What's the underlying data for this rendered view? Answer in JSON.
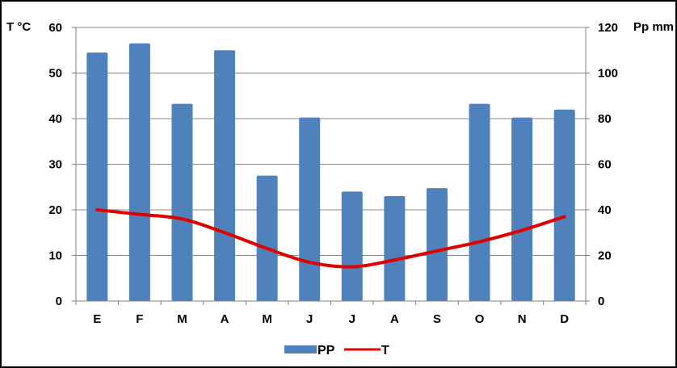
{
  "chart_data": {
    "type": "bar",
    "categories": [
      "E",
      "F",
      "M",
      "A",
      "M",
      "J",
      "J",
      "A",
      "S",
      "O",
      "N",
      "D"
    ],
    "series": [
      {
        "name": "PP",
        "type": "bar",
        "axis": "right",
        "color": "#4F81BD",
        "values": [
          109,
          113,
          86.5,
          110,
          55,
          80.5,
          48,
          46,
          49.5,
          86.5,
          80.5,
          84
        ]
      },
      {
        "name": "T",
        "type": "line",
        "axis": "left",
        "color": "#E00000",
        "values": [
          20,
          19,
          18,
          15,
          11.5,
          8.5,
          7.5,
          9,
          11,
          13,
          15.5,
          18.5
        ]
      }
    ],
    "y_left": {
      "label": "T °C",
      "ticks": [
        "0",
        "10",
        "20",
        "30",
        "40",
        "50",
        "60"
      ],
      "ylim": [
        0,
        60
      ]
    },
    "y_right": {
      "label": "Pp mm",
      "ticks": [
        "0",
        "20",
        "40",
        "60",
        "80",
        "100",
        "120"
      ],
      "ylim": [
        0,
        120
      ]
    },
    "grid": true,
    "legend_position": "bottom"
  }
}
